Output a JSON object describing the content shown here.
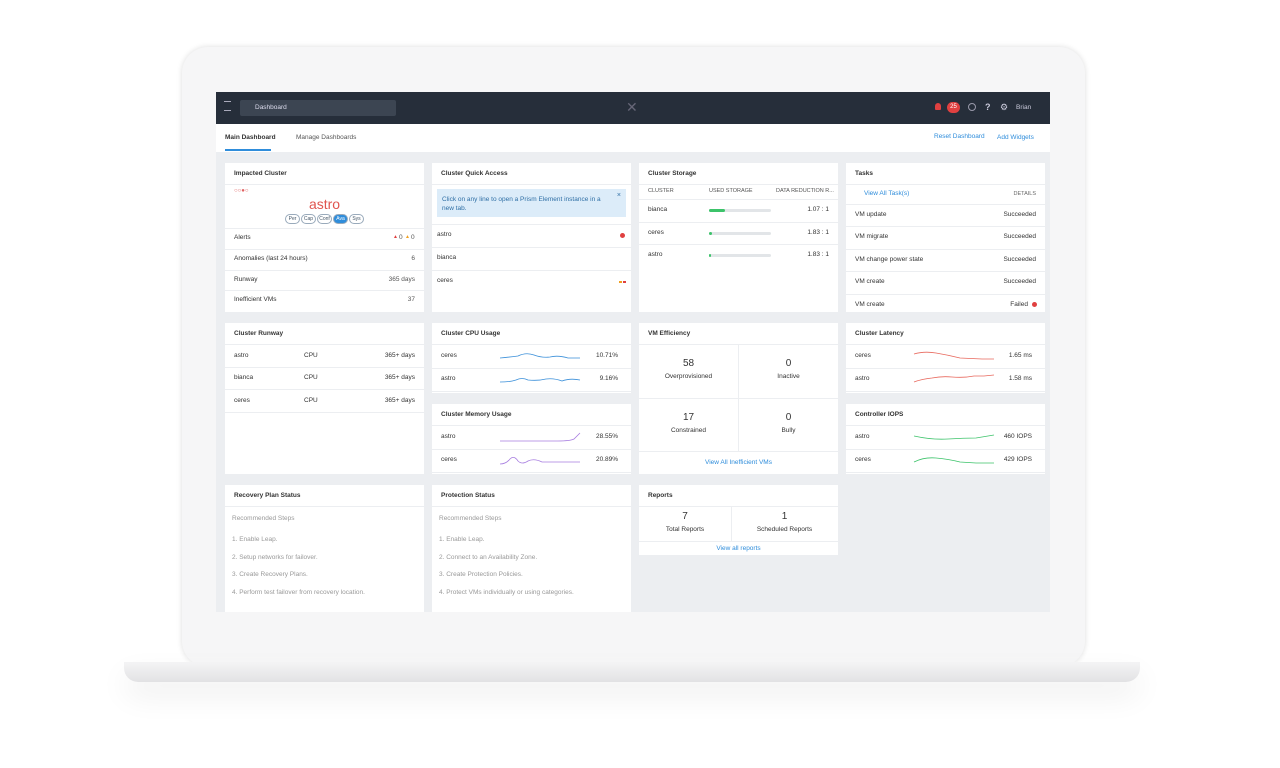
{
  "topbar": {
    "search": "Dashboard",
    "alert_count": "25",
    "user": "Brian"
  },
  "tabs": {
    "main": "Main Dashboard",
    "manage": "Manage Dashboards",
    "reset": "Reset Dashboard",
    "add": "Add Widgets"
  },
  "impacted_cluster": {
    "title": "Impacted Cluster",
    "cluster": "astro",
    "pills": [
      "Per",
      "Cap",
      "Conf",
      "Ava",
      "Sys"
    ],
    "alerts": {
      "label": "Alerts",
      "critical": "0",
      "warning": "0"
    },
    "rows": [
      {
        "label": "Anomalies (last 24 hours)",
        "value": "6"
      },
      {
        "label": "Runway",
        "value": "365 days"
      },
      {
        "label": "Inefficient VMs",
        "value": "37"
      }
    ]
  },
  "quick_access": {
    "title": "Cluster Quick Access",
    "info": "Click on any line to open a Prism Element instance in a new tab.",
    "clusters": [
      "astro",
      "bianca",
      "ceres"
    ]
  },
  "storage": {
    "title": "Cluster Storage",
    "headers": [
      "CLUSTER",
      "USED STORAGE",
      "DATA REDUCTION R..."
    ],
    "rows": [
      {
        "cluster": "bianca",
        "ratio": "1.07 : 1"
      },
      {
        "cluster": "ceres",
        "ratio": "1.83 : 1"
      },
      {
        "cluster": "astro",
        "ratio": "1.83 : 1"
      }
    ]
  },
  "tasks": {
    "title": "Tasks",
    "view_all": "View All Task(s)",
    "details": "DETAILS",
    "rows": [
      {
        "name": "VM update",
        "status": "Succeeded"
      },
      {
        "name": "VM migrate",
        "status": "Succeeded"
      },
      {
        "name": "VM change power state",
        "status": "Succeeded"
      },
      {
        "name": "VM create",
        "status": "Succeeded"
      },
      {
        "name": "VM create",
        "status": "Failed"
      }
    ]
  },
  "runway": {
    "title": "Cluster Runway",
    "rows": [
      {
        "cluster": "astro",
        "resource": "CPU",
        "value": "365+ days"
      },
      {
        "cluster": "bianca",
        "resource": "CPU",
        "value": "365+ days"
      },
      {
        "cluster": "ceres",
        "resource": "CPU",
        "value": "365+ days"
      }
    ]
  },
  "cpu": {
    "title": "Cluster CPU Usage",
    "rows": [
      {
        "cluster": "ceres",
        "value": "10.71%"
      },
      {
        "cluster": "astro",
        "value": "9.16%"
      }
    ]
  },
  "memory": {
    "title": "Cluster Memory Usage",
    "rows": [
      {
        "cluster": "astro",
        "value": "28.55%"
      },
      {
        "cluster": "ceres",
        "value": "20.89%"
      }
    ]
  },
  "vm_efficiency": {
    "title": "VM Efficiency",
    "cells": [
      {
        "value": "58",
        "label": "Overprovisioned"
      },
      {
        "value": "0",
        "label": "Inactive"
      },
      {
        "value": "17",
        "label": "Constrained"
      },
      {
        "value": "0",
        "label": "Bully"
      }
    ],
    "link": "View All Inefficient VMs"
  },
  "latency": {
    "title": "Cluster Latency",
    "rows": [
      {
        "cluster": "ceres",
        "value": "1.65 ms"
      },
      {
        "cluster": "astro",
        "value": "1.58 ms"
      }
    ]
  },
  "iops": {
    "title": "Controller IOPS",
    "rows": [
      {
        "cluster": "astro",
        "value": "460 IOPS"
      },
      {
        "cluster": "ceres",
        "value": "429 IOPS"
      }
    ]
  },
  "recovery": {
    "title": "Recovery Plan Status",
    "subtitle": "Recommended Steps",
    "steps": [
      "1. Enable Leap.",
      "2. Setup networks for failover.",
      "3. Create Recovery Plans.",
      "4. Perform test failover from recovery location."
    ]
  },
  "protection": {
    "title": "Protection Status",
    "subtitle": "Recommended Steps",
    "steps": [
      "1. Enable Leap.",
      "2. Connect to an Availability Zone.",
      "3. Create Protection Policies.",
      "4. Protect VMs individually or using categories."
    ]
  },
  "reports": {
    "title": "Reports",
    "cells": [
      {
        "value": "7",
        "label": "Total Reports"
      },
      {
        "value": "1",
        "label": "Scheduled Reports"
      }
    ],
    "link": "View all reports"
  }
}
